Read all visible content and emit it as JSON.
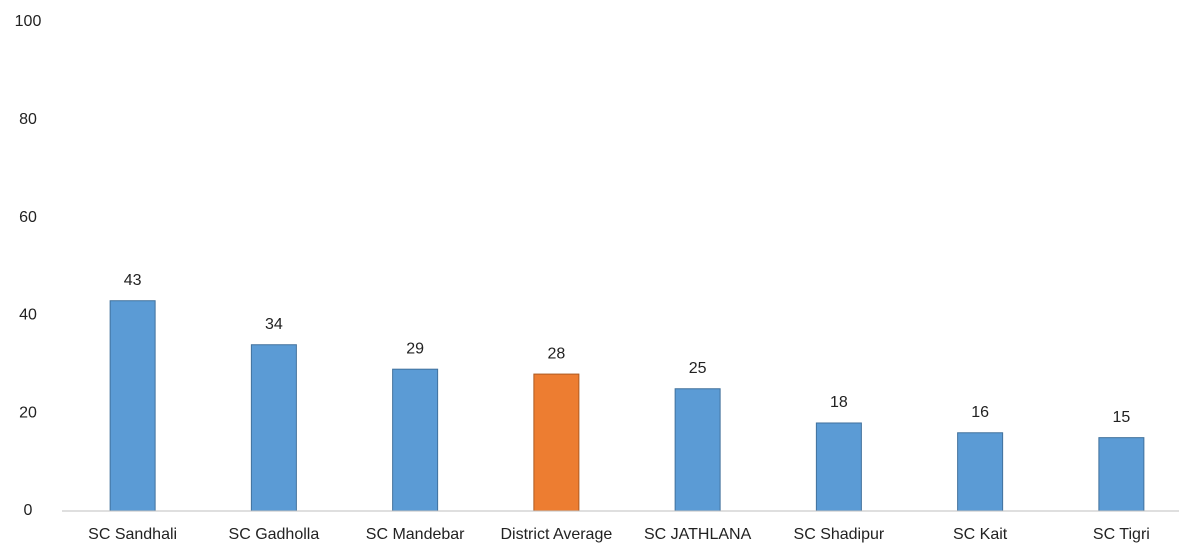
{
  "chart_data": {
    "type": "bar",
    "categories": [
      "SC Sandhali",
      "SC Gadholla",
      "SC Mandebar",
      "District Average",
      "SC JATHLANA",
      "SC Shadipur",
      "SC Kait",
      "SC Tigri"
    ],
    "values": [
      43,
      34,
      29,
      28,
      25,
      18,
      16,
      15
    ],
    "colors": [
      "#5b9bd5",
      "#5b9bd5",
      "#5b9bd5",
      "#ed7d31",
      "#5b9bd5",
      "#5b9bd5",
      "#5b9bd5",
      "#5b9bd5"
    ],
    "ylim": [
      0,
      100
    ],
    "yticks": [
      0,
      20,
      40,
      60,
      80,
      100
    ],
    "grid": false
  }
}
